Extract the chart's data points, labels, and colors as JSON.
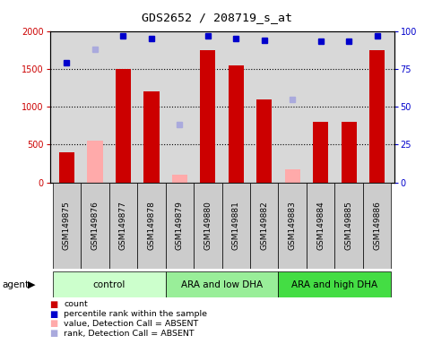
{
  "title": "GDS2652 / 208719_s_at",
  "samples": [
    "GSM149875",
    "GSM149876",
    "GSM149877",
    "GSM149878",
    "GSM149879",
    "GSM149880",
    "GSM149881",
    "GSM149882",
    "GSM149883",
    "GSM149884",
    "GSM149885",
    "GSM149886"
  ],
  "bar_values": [
    400,
    null,
    1500,
    1200,
    null,
    1750,
    1550,
    1100,
    null,
    800,
    800,
    1750
  ],
  "bar_absent_values": [
    null,
    550,
    null,
    null,
    100,
    null,
    null,
    null,
    170,
    null,
    null,
    null
  ],
  "percentile_present": [
    79,
    null,
    97,
    95,
    null,
    97,
    95,
    94,
    null,
    93,
    93,
    97
  ],
  "percentile_absent": [
    null,
    88,
    null,
    null,
    38,
    null,
    null,
    null,
    55,
    null,
    null,
    null
  ],
  "groups": [
    {
      "label": "control",
      "start": 0,
      "end": 3,
      "color": "#ccffcc"
    },
    {
      "label": "ARA and low DHA",
      "start": 4,
      "end": 7,
      "color": "#99ee99"
    },
    {
      "label": "ARA and high DHA",
      "start": 8,
      "end": 11,
      "color": "#44dd44"
    }
  ],
  "ylim_left": [
    0,
    2000
  ],
  "ylim_right": [
    0,
    100
  ],
  "yticks_left": [
    0,
    500,
    1000,
    1500,
    2000
  ],
  "yticks_right": [
    0,
    25,
    50,
    75,
    100
  ],
  "bar_color": "#cc0000",
  "bar_absent_color": "#ffaaaa",
  "dot_color": "#0000cc",
  "dot_absent_color": "#aaaadd",
  "plot_bg": "#d8d8d8",
  "label_bg": "#cccccc",
  "background_color": "#ffffff"
}
